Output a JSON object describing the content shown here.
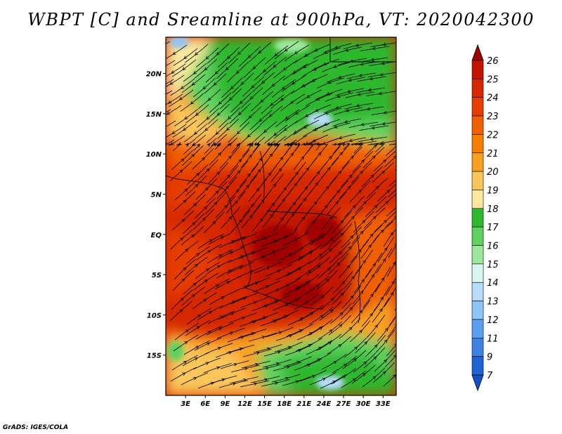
{
  "title": "WBPT [C] and Sreamline at 900hPa, VT: 2020042300",
  "credit": "GrADS: IGES/COLA",
  "map": {
    "lat_labels": [
      "20N",
      "15N",
      "10N",
      "5N",
      "EQ",
      "5S",
      "10S",
      "15S"
    ],
    "lat_values": [
      20,
      15,
      10,
      5,
      0,
      -5,
      -10,
      -15
    ],
    "lon_labels": [
      "3E",
      "6E",
      "9E",
      "12E",
      "15E",
      "18E",
      "21E",
      "24E",
      "27E",
      "30E",
      "33E"
    ],
    "lon_values": [
      3,
      6,
      9,
      12,
      15,
      18,
      21,
      24,
      27,
      30,
      33
    ],
    "lat_range": [
      -20,
      24.5
    ],
    "lon_range": [
      0,
      35
    ]
  },
  "colorbar": {
    "labels": [
      "26",
      "25",
      "24",
      "23",
      "22",
      "21",
      "20",
      "19",
      "18",
      "17",
      "16",
      "15",
      "14",
      "13",
      "12",
      "11",
      "9",
      "7"
    ],
    "colors": [
      "#a00000",
      "#c21200",
      "#d62800",
      "#e63e00",
      "#f06000",
      "#f57e00",
      "#f8a020",
      "#fac65a",
      "#fce89e",
      "#2eb82e",
      "#5fd15f",
      "#9ee89e",
      "#daf5f0",
      "#b8dcfc",
      "#8ec4f8",
      "#5a9ef0",
      "#3c82e6",
      "#1e64d6",
      "#1450c8"
    ]
  }
}
